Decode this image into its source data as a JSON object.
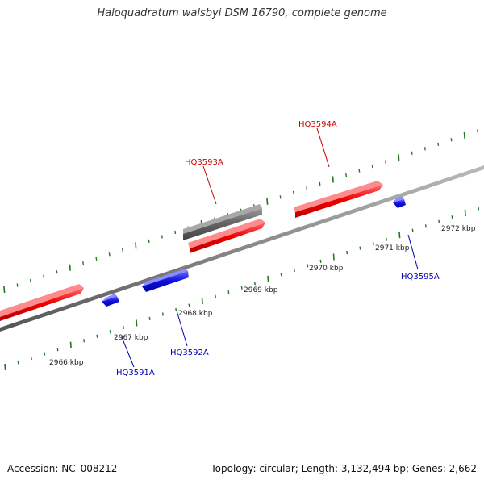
{
  "title": "Haloquadratum walsbyi DSM 16790, complete genome",
  "footer": {
    "accession": "Accession: NC_008212",
    "summary": "Topology: circular; Length: 3,132,494 bp; Genes: 2,662"
  },
  "colors": {
    "forward_gene": "#ee0000",
    "reverse_gene": "#1111dd",
    "pseudo_gene": "#666666",
    "backbone": "#888888",
    "ticks": "#227722",
    "forward_label": "#cc0000",
    "reverse_label": "#0000bb",
    "kbp_label": "#222222"
  },
  "kbp_labels": [
    "2966 kbp",
    "2967 kbp",
    "2968 kbp",
    "2969 kbp",
    "2970 kbp",
    "2971 kbp",
    "2972 kbp"
  ],
  "gene_labels": [
    {
      "id": "HQ3591A",
      "text": "HQ3591A",
      "strand": "reverse"
    },
    {
      "id": "HQ3592A",
      "text": "HQ3592A",
      "strand": "reverse"
    },
    {
      "id": "HQ3593A",
      "text": "HQ3593A",
      "strand": "forward"
    },
    {
      "id": "HQ3594A",
      "text": "HQ3594A",
      "strand": "forward"
    },
    {
      "id": "HQ3595A",
      "text": "HQ3595A",
      "strand": "reverse"
    }
  ]
}
